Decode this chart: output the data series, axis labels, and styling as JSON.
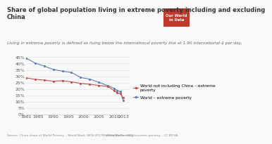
{
  "title": "Share of global population living in extreme poverty including and excluding\nChina",
  "subtitle": "Living in extreme poverty is defined as living below the international poverty line at 1.90 international-$ per day.",
  "source": "Source: China share of World Poverty – World Bank (WDI-2017), World Bank – WDI",
  "owid_url": "OurWorldInData.org/extreme-poverty – CC BY-SA",
  "ylim": [
    0,
    0.47
  ],
  "yticks": [
    0.0,
    0.05,
    0.1,
    0.15,
    0.2,
    0.25,
    0.3,
    0.35,
    0.4,
    0.45
  ],
  "ytick_labels": [
    "0%",
    "5%",
    "10%",
    "15%",
    "20%",
    "25%",
    "30%",
    "35%",
    "40%",
    "45%"
  ],
  "xlim": [
    1981,
    2015
  ],
  "xticks": [
    1981,
    1985,
    1990,
    1995,
    2000,
    2005,
    2010,
    2013
  ],
  "world_years": [
    1981,
    1984,
    1987,
    1990,
    1993,
    1996,
    1999,
    2002,
    2005,
    2008,
    2010,
    2011,
    2012,
    2013
  ],
  "world_values": [
    0.444,
    0.405,
    0.38,
    0.354,
    0.34,
    0.33,
    0.29,
    0.278,
    0.253,
    0.225,
    0.205,
    0.189,
    0.179,
    0.108
  ],
  "world_ex_china_years": [
    1981,
    1984,
    1987,
    1990,
    1993,
    1996,
    1999,
    2002,
    2005,
    2008,
    2010,
    2011,
    2012,
    2013
  ],
  "world_ex_china_values": [
    0.288,
    0.276,
    0.27,
    0.261,
    0.265,
    0.256,
    0.244,
    0.237,
    0.228,
    0.219,
    0.186,
    0.172,
    0.163,
    0.13
  ],
  "world_color": "#5b7db1",
  "world_ex_china_color": "#c0504d",
  "legend_world_label": "World – extreme poverty",
  "legend_world_ex_china_label": "World not including China – extreme\npoverty",
  "background_color": "#f9f9f9",
  "title_fontsize": 6.0,
  "subtitle_fontsize": 4.2,
  "tick_fontsize": 4.5,
  "legend_fontsize": 4.2,
  "source_fontsize": 3.2,
  "owid_box_color": "#c0392b",
  "owid_box_text": "Our World\nin Data"
}
